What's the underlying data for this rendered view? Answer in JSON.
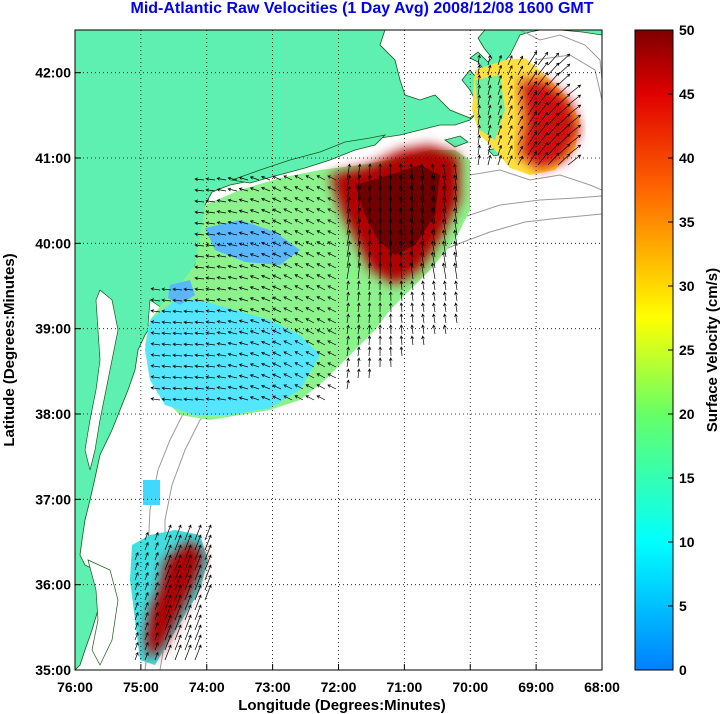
{
  "title": "Mid-Atlantic Raw Velocities (1 Day Avg) 2008/12/08 1600 GMT",
  "map": {
    "xlabel": "Longitude (Degrees:Minutes)",
    "ylabel": "Latitude (Degrees:Minutes)",
    "lon_range": [
      -76,
      -68
    ],
    "lat_range": [
      35,
      42.5
    ],
    "lon_ticks": [
      "76:00",
      "75:00",
      "74:00",
      "73:00",
      "72:00",
      "71:00",
      "70:00",
      "69:00",
      "68:00"
    ],
    "lat_ticks": [
      "35:00",
      "36:00",
      "37:00",
      "38:00",
      "39:00",
      "40:00",
      "41:00",
      "42:00"
    ],
    "grid": true,
    "land_color": "#5ef0b0",
    "ocean_color": "#ffffff",
    "bathymetry_color": "#9a9a9a"
  },
  "colorbar": {
    "label": "Surface Velocity (cm/s)",
    "min": 0,
    "max": 50,
    "ticks": [
      "0",
      "5",
      "10",
      "15",
      "20",
      "25",
      "30",
      "35",
      "40",
      "45",
      "50"
    ]
  }
}
